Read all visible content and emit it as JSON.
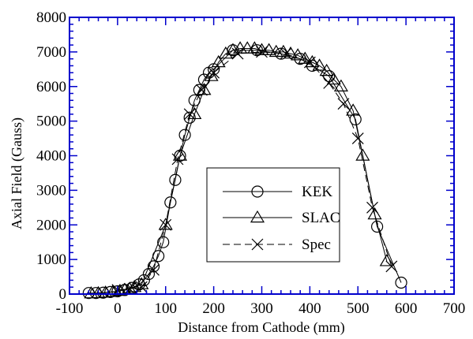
{
  "chart_data": {
    "type": "line",
    "xlabel": "Distance from Cathode (mm)",
    "ylabel": "Axial Field (Gauss)",
    "xlim": [
      -100,
      700
    ],
    "ylim": [
      0,
      8000
    ],
    "x_ticks": [
      "-100",
      "0",
      "100",
      "200",
      "300",
      "400",
      "500",
      "600",
      "700"
    ],
    "y_ticks": [
      "0",
      "1000",
      "2000",
      "3000",
      "4000",
      "5000",
      "6000",
      "7000",
      "8000"
    ],
    "x_tick_values": [
      -100,
      0,
      100,
      200,
      300,
      400,
      500,
      600,
      700
    ],
    "y_tick_values": [
      0,
      1000,
      2000,
      3000,
      4000,
      5000,
      6000,
      7000,
      8000
    ],
    "legend_position": "center-right",
    "colors": {
      "frame": "#0000cc",
      "series": "#000000"
    },
    "series": [
      {
        "name": "KEK",
        "marker": "circle",
        "x": [
          -60,
          -45,
          -30,
          -15,
          0,
          15,
          30,
          45,
          55,
          65,
          75,
          85,
          95,
          110,
          120,
          130,
          140,
          150,
          160,
          170,
          180,
          190,
          200,
          240,
          290,
          340,
          380,
          405,
          440,
          495,
          540,
          590
        ],
        "y": [
          30,
          30,
          40,
          60,
          80,
          120,
          180,
          280,
          400,
          580,
          800,
          1100,
          1500,
          2650,
          3300,
          4000,
          4600,
          5100,
          5600,
          5900,
          6200,
          6400,
          6500,
          7050,
          7050,
          6950,
          6800,
          6600,
          6300,
          5050,
          1950,
          330
        ]
      },
      {
        "name": "SLAC",
        "marker": "triangle",
        "x": [
          -55,
          -40,
          -25,
          -10,
          5,
          15,
          25,
          35,
          50,
          100,
          130,
          160,
          180,
          195,
          210,
          225,
          240,
          255,
          270,
          285,
          300,
          315,
          330,
          345,
          360,
          375,
          390,
          405,
          420,
          435,
          450,
          465,
          490,
          510,
          535,
          560
        ],
        "y": [
          20,
          25,
          40,
          60,
          90,
          120,
          150,
          200,
          280,
          2000,
          4000,
          5200,
          5900,
          6300,
          6700,
          6950,
          7050,
          7100,
          7100,
          7100,
          7050,
          7050,
          7000,
          7000,
          6950,
          6900,
          6800,
          6700,
          6600,
          6450,
          6200,
          6000,
          5300,
          4000,
          2300,
          950
        ]
      },
      {
        "name": "Spec",
        "marker": "cross",
        "x": [
          0,
          25,
          50,
          75,
          100,
          125,
          150,
          175,
          200,
          250,
          300,
          350,
          400,
          440,
          470,
          500,
          530,
          570
        ],
        "y": [
          120,
          150,
          200,
          700,
          2000,
          3900,
          5200,
          5900,
          6400,
          6950,
          7000,
          6950,
          6700,
          6100,
          5500,
          4500,
          2500,
          800
        ]
      }
    ]
  }
}
